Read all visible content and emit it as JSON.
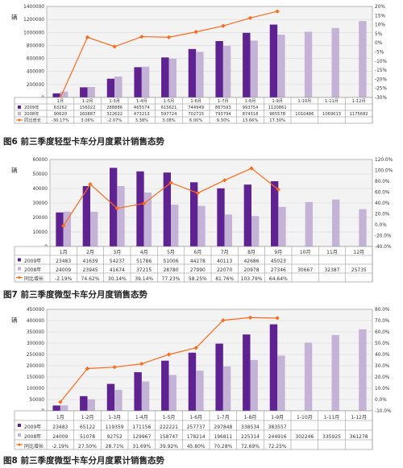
{
  "captions": {
    "fig6": "图6 前三季度轻型卡车分月度累计销售态势",
    "fig7": "图7 前三季度微型卡车分月度销售态势",
    "fig8": "图8 前三季度微型卡车分月度累计销售态势"
  },
  "colors": {
    "series2009": "#5e2390",
    "series2008": "#c4b2d7",
    "growth": "#ff6a1a",
    "plot_bg": "#f3f3f3",
    "grid": "#d9d9d9"
  },
  "chart_data": [
    {
      "id": "fig6",
      "type": "bar",
      "unit_label": "辆",
      "categories": [
        "1月",
        "1-2月",
        "1-3月",
        "1-4月",
        "1-5月",
        "1-6月",
        "1-7月",
        "1-8月",
        "1-9月",
        "1-10月",
        "1-11月",
        "1-12月"
      ],
      "ylim": [
        0,
        1400000
      ],
      "y_ticks": [
        "0",
        "200000",
        "400000",
        "600000",
        "800000",
        "1000000",
        "1200000",
        "1400000"
      ],
      "y2lim": [
        -30,
        20
      ],
      "y2_ticks": [
        "-30%",
        "-25%",
        "-20%",
        "-15%",
        "-10%",
        "-5%",
        "0%",
        "5%",
        "10%",
        "15%",
        "20%"
      ],
      "series": [
        {
          "name": "2009年",
          "values": [
            63262,
            156022,
            288886,
            465574,
            615621,
            744949,
            867593,
            993754,
            1120861,
            null,
            null,
            null
          ],
          "labels": [
            "63262",
            "156022",
            "288886",
            "465574",
            "615621",
            "744949",
            "867593",
            "993754",
            "1120861",
            "",
            "",
            ""
          ]
        },
        {
          "name": "2008年",
          "values": [
            90620,
            160887,
            322622,
            473213,
            597724,
            702715,
            793794,
            874318,
            965578,
            1010486,
            1069013,
            1175682
          ],
          "labels": [
            "90620",
            "160887",
            "322622",
            "473213",
            "597724",
            "702715",
            "793794",
            "874318",
            "965578",
            "1010486",
            "1069013",
            "1175682"
          ]
        },
        {
          "name": "同比增长",
          "values": [
            -30.17,
            3.06,
            -2.07,
            3.38,
            3.08,
            6.0,
            9.3,
            13.66,
            17.3,
            null,
            null,
            null
          ],
          "labels": [
            "-30.17%",
            "3.06%",
            "-2.07%",
            "3.38%",
            "3.08%",
            "6.00%",
            "9.30%",
            "13.66%",
            "17.30%",
            "",
            "",
            ""
          ]
        }
      ]
    },
    {
      "id": "fig7",
      "type": "bar",
      "unit_label": "辆",
      "categories": [
        "1月",
        "2月",
        "3月",
        "4月",
        "5月",
        "6月",
        "7月",
        "8月",
        "9月",
        "10月",
        "11月",
        "12月"
      ],
      "ylim": [
        0,
        60000
      ],
      "y_ticks": [
        "0",
        "10000",
        "20000",
        "30000",
        "40000",
        "50000",
        "60000"
      ],
      "y2lim": [
        -40,
        120
      ],
      "y2_ticks": [
        "-40.0%",
        "-20.0%",
        "0.0%",
        "20.0%",
        "40.0%",
        "60.0%",
        "80.0%",
        "100.0%",
        "120.0%"
      ],
      "series": [
        {
          "name": "2009年",
          "values": [
            23483,
            41639,
            54237,
            51786,
            51006,
            44278,
            40113,
            42686,
            45023,
            null,
            null,
            null
          ],
          "labels": [
            "23483",
            "41639",
            "54237",
            "51786",
            "51006",
            "44278",
            "40113",
            "42686",
            "45023",
            "",
            "",
            ""
          ]
        },
        {
          "name": "2008年",
          "values": [
            24009,
            23945,
            41674,
            37215,
            28780,
            27990,
            22070,
            20978,
            27346,
            30667,
            32387,
            25735
          ],
          "labels": [
            "24009",
            "23945",
            "41674",
            "37215",
            "28780",
            "27990",
            "22070",
            "20978",
            "27346",
            "30667",
            "32387",
            "25735"
          ]
        },
        {
          "name": "同比增长",
          "values": [
            -2.19,
            74.62,
            30.14,
            39.14,
            77.23,
            58.25,
            81.76,
            103.79,
            64.64,
            null,
            null,
            null
          ],
          "labels": [
            "-2.19%",
            "74.62%",
            "30.14%",
            "39.14%",
            "77.23%",
            "58.25%",
            "81.76%",
            "103.79%",
            "64.64%",
            "",
            "",
            ""
          ]
        }
      ]
    },
    {
      "id": "fig8",
      "type": "bar",
      "unit_label": "辆",
      "categories": [
        "1月",
        "1-2月",
        "1-3月",
        "1-4月",
        "1-5月",
        "1-6月",
        "1-7月",
        "1-8月",
        "1-9月",
        "1-10月",
        "1-11月",
        "1-12月"
      ],
      "ylim": [
        0,
        450000
      ],
      "y_ticks": [
        "0",
        "50000",
        "100000",
        "150000",
        "200000",
        "250000",
        "300000",
        "350000",
        "400000",
        "450000"
      ],
      "y2lim": [
        -10,
        80
      ],
      "y2_ticks": [
        "-10.0%",
        "0.0%",
        "10.0%",
        "20.0%",
        "30.0%",
        "40.0%",
        "50.0%",
        "60.0%",
        "70.0%",
        "80.0%"
      ],
      "series": [
        {
          "name": "2009年",
          "values": [
            23483,
            65122,
            119359,
            171156,
            222221,
            257737,
            297848,
            338534,
            383557,
            null,
            null,
            null
          ],
          "labels": [
            "23483",
            "65122",
            "119359",
            "171156",
            "222221",
            "257737",
            "297848",
            "338534",
            "383557",
            "",
            "",
            ""
          ]
        },
        {
          "name": "2008年",
          "values": [
            24009,
            51078,
            92752,
            129967,
            158747,
            178214,
            196811,
            225314,
            244916,
            302246,
            335925,
            361278
          ],
          "labels": [
            "24009",
            "51078",
            "92752",
            "129967",
            "158747",
            "178214",
            "196811",
            "225314",
            "244916",
            "302246",
            "335925",
            "361278"
          ]
        },
        {
          "name": "同比增长",
          "values": [
            -2.19,
            27.5,
            28.71,
            31.69,
            39.92,
            45.8,
            70.28,
            72.69,
            72.25,
            null,
            null,
            null
          ],
          "labels": [
            "-2.19%",
            "27.50%",
            "28.71%",
            "31.69%",
            "39.92%",
            "45.80%",
            "70.28%",
            "72.69%",
            "72.25%",
            "",
            "",
            ""
          ]
        }
      ]
    }
  ]
}
